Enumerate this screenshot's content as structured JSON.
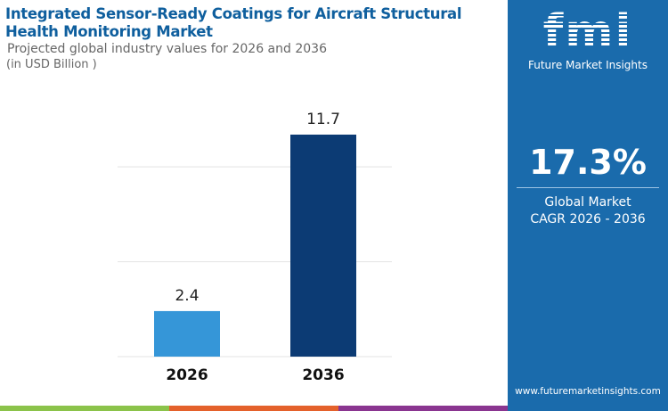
{
  "header": {
    "title": "Integrated Sensor-Ready Coatings for Aircraft Structural Health Monitoring Market",
    "subtitle": "Projected global industry values for 2026 and 2036",
    "unit": "(in USD Billion )"
  },
  "chart_data": {
    "type": "bar",
    "title": "Integrated Sensor-Ready Coatings for Aircraft Structural Health Monitoring Market",
    "categories": [
      "2026",
      "2036"
    ],
    "values": [
      2.4,
      11.7
    ],
    "data_labels": [
      "2.4",
      "11.7"
    ],
    "colors": [
      "#3596d8",
      "#0c3b74"
    ],
    "ylim": [
      0,
      11.7
    ],
    "gridlines": [
      0,
      5,
      10
    ],
    "grid": true,
    "ylabel": "",
    "xlabel": ""
  },
  "panel": {
    "logo_text": "fmi",
    "brand": "Future Market Insights",
    "cagr": "17.3%",
    "cagr_label_1": "Global Market",
    "cagr_label_2": "CAGR 2026 - 2036",
    "url": "www.futuremarketinsights.com",
    "color": "#1a6bac"
  },
  "stripes": [
    "#8bc34a",
    "#e4612b",
    "#8a3590"
  ]
}
